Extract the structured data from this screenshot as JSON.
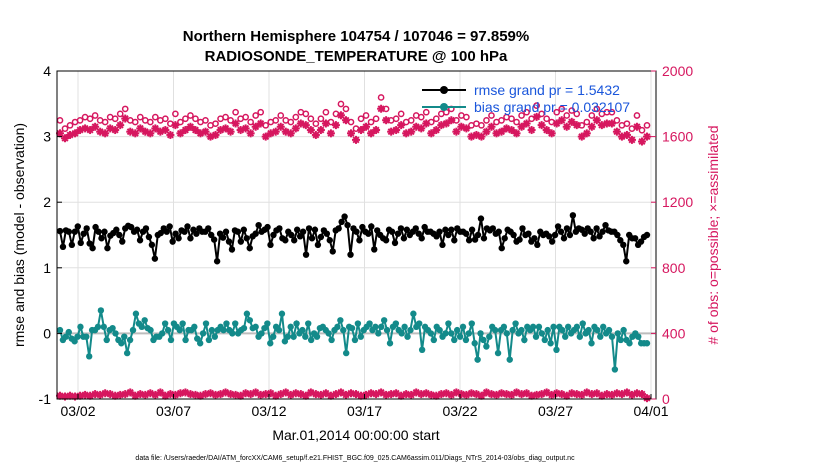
{
  "colors": {
    "rmse": "#000000",
    "bias": "#138a8a",
    "obs": "#d6175f",
    "axis_right": "#d6175f",
    "legend_text": "#1a56db",
    "zero_line": "#bdbdbd",
    "grid": "#e0e0e0"
  },
  "footer_text": "data file: /Users/raeder/DAI/ATM_forcXX/CAM6_setup/f.e21.FHIST_BGC.f09_025.CAM6assim.011/Diags_NTrS_2014-03/obs_diag_output.nc",
  "chart_data": {
    "type": "line",
    "title": [
      "Northern Hemisphere 104754 / 107046 = 97.859%",
      "RADIOSONDE_TEMPERATURE @ 100 hPa"
    ],
    "xlabel": "Mar.01,2014 00:00:00 start",
    "ylabel": "rmse and bias (model - observation)",
    "ylabel_right": "# of obs: o=possible; ×=assimilated",
    "x_ticks": [
      "03/02",
      "03/07",
      "03/12",
      "03/17",
      "03/22",
      "03/27",
      "04/01"
    ],
    "y_ticks": [
      "-1",
      "0",
      "1",
      "2",
      "3",
      "4"
    ],
    "y_ticks_right": [
      "0",
      "400",
      "800",
      "1200",
      "1600",
      "2000"
    ],
    "xlim": [
      0.5,
      31
    ],
    "ylim": [
      -1,
      4
    ],
    "ylim_right": [
      0,
      2000
    ],
    "legend": [
      "rmse grand pr = 1.5432",
      "bias grand pr = 0.032107"
    ],
    "series": [
      {
        "name": "rmse",
        "values": [
          1.56,
          1.32,
          1.57,
          1.55,
          1.35,
          1.55,
          1.63,
          1.38,
          1.52,
          1.6,
          1.37,
          1.3,
          1.62,
          1.55,
          1.45,
          1.55,
          1.3,
          1.49,
          1.53,
          1.58,
          1.5,
          1.4,
          1.6,
          1.64,
          1.62,
          1.55,
          1.58,
          1.42,
          1.55,
          1.6,
          1.47,
          1.35,
          1.14,
          1.5,
          1.53,
          1.6,
          1.55,
          1.63,
          1.4,
          1.52,
          1.45,
          1.57,
          1.55,
          1.63,
          1.45,
          1.58,
          1.52,
          1.6,
          1.55,
          1.55,
          1.6,
          1.5,
          1.43,
          1.1,
          1.52,
          1.46,
          1.55,
          1.4,
          1.28,
          1.57,
          1.55,
          1.4,
          1.58,
          1.45,
          1.3,
          1.48,
          1.52,
          1.65,
          1.55,
          1.58,
          1.62,
          1.35,
          1.5,
          1.57,
          1.6,
          1.45,
          1.42,
          1.55,
          1.5,
          1.42,
          1.58,
          1.48,
          1.55,
          1.2,
          1.6,
          1.45,
          1.58,
          1.35,
          1.47,
          1.57,
          1.52,
          1.42,
          1.25,
          1.57,
          1.6,
          1.7,
          1.78,
          1.65,
          1.2,
          1.6,
          1.55,
          1.42,
          1.62,
          1.55,
          1.52,
          1.63,
          1.28,
          1.57,
          1.5,
          1.45,
          1.42,
          1.58,
          1.55,
          1.38,
          1.52,
          1.6,
          1.45,
          1.58,
          1.5,
          1.55,
          1.6,
          1.52,
          1.45,
          1.62,
          1.55,
          1.55,
          1.52,
          1.48,
          1.55,
          1.35,
          1.58,
          1.5,
          1.58,
          1.42,
          1.6,
          1.55,
          1.55,
          1.52,
          1.42,
          1.58,
          1.43,
          1.5,
          1.75,
          1.45,
          1.6,
          1.57,
          1.6,
          1.52,
          1.55,
          1.3,
          1.45,
          1.58,
          1.55,
          1.5,
          1.4,
          1.43,
          1.6,
          1.5,
          1.52,
          1.4,
          1.45,
          1.35,
          1.55,
          1.5,
          1.52,
          1.48,
          1.4,
          1.5,
          1.63,
          1.55,
          1.45,
          1.6,
          1.5,
          1.8,
          1.55,
          1.6,
          1.58,
          1.52,
          1.6,
          1.55,
          1.45,
          1.6,
          1.48,
          1.55,
          1.65,
          1.57,
          1.55,
          1.55,
          1.5,
          1.42,
          1.35,
          1.1,
          1.5,
          1.45,
          1.45,
          1.35,
          1.4,
          1.47,
          1.5
        ]
      },
      {
        "name": "bias",
        "values": [
          0.05,
          -0.1,
          -0.05,
          0.02,
          -0.08,
          -0.12,
          -0.05,
          0.1,
          -0.05,
          -0.05,
          -0.35,
          0.05,
          0.05,
          0.1,
          0.35,
          0.1,
          -0.1,
          0.05,
          0.08,
          0.0,
          -0.1,
          -0.15,
          -0.05,
          -0.3,
          -0.1,
          0.05,
          0.3,
          0.15,
          0.1,
          0.2,
          0.08,
          0.05,
          -0.1,
          -0.05,
          -0.05,
          0.0,
          0.15,
          0.05,
          -0.1,
          0.15,
          0.1,
          0.05,
          0.15,
          -0.1,
          0.05,
          0.05,
          0.1,
          -0.08,
          -0.15,
          0.0,
          0.15,
          -0.1,
          0.05,
          -0.05,
          0.05,
          0.1,
          0.05,
          0.15,
          0.05,
          0.0,
          0.15,
          0.0,
          0.05,
          0.08,
          0.3,
          0.2,
          0.08,
          0.1,
          -0.05,
          0.0,
          0.08,
          0.15,
          -0.15,
          -0.05,
          0.1,
          0.05,
          0.3,
          -0.12,
          -0.05,
          0.1,
          -0.05,
          0.15,
          0.0,
          0.05,
          -0.05,
          0.15,
          -0.1,
          0.0,
          -0.05,
          0.08,
          0.1,
          0.05,
          0.0,
          -0.1,
          0.05,
          0.1,
          0.2,
          0.05,
          -0.3,
          0.1,
          0.08,
          -0.1,
          0.15,
          -0.05,
          0.05,
          0.1,
          0.15,
          0.05,
          0.1,
          0.0,
          0.1,
          0.2,
          0.05,
          -0.15,
          0.1,
          0.15,
          0.05,
          0.0,
          0.1,
          -0.05,
          0.05,
          0.3,
          0.1,
          0.15,
          -0.25,
          0.1,
          0.05,
          0.0,
          -0.1,
          0.1,
          0.05,
          -0.05,
          0.0,
          0.15,
          0.0,
          -0.1,
          0.05,
          -0.05,
          0.1,
          -0.1,
          0.0,
          0.15,
          -0.15,
          -0.4,
          0.0,
          -0.1,
          -0.2,
          -0.05,
          0.1,
          0.05,
          -0.3,
          0.05,
          0.1,
          0.0,
          -0.4,
          0.05,
          0.15,
          0.0,
          0.05,
          -0.1,
          0.1,
          0.05,
          0.1,
          -0.05,
          0.1,
          0.0,
          -0.1,
          0.05,
          -0.15,
          0.1,
          -0.25,
          0.1,
          0.05,
          -0.05,
          0.1,
          0.0,
          0.05,
          0.1,
          -0.05,
          0.15,
          0.0,
          0.05,
          -0.15,
          0.1,
          0.05,
          -0.05,
          0.1,
          0.0,
          0.05,
          -0.05,
          -0.55,
          0.0,
          -0.1,
          0.05,
          -0.1,
          -0.15,
          -0.05,
          0.0,
          -0.05,
          -0.15,
          -0.15,
          -0.15
        ]
      },
      {
        "name": "obs_possible",
        "axis": "right",
        "values": [
          1650,
          1600,
          1620,
          1640,
          1650,
          1670,
          1660,
          1680,
          1650,
          1640,
          1670,
          1660,
          1690,
          1720,
          1650,
          1640,
          1670,
          1650,
          1640,
          1670,
          1650,
          1660,
          1630,
          1690,
          1640,
          1660,
          1680,
          1660,
          1640,
          1650,
          1620,
          1630,
          1660,
          1670,
          1650,
          1700,
          1660,
          1670,
          1640,
          1680,
          1700,
          1620,
          1640,
          1650,
          1680,
          1650,
          1640,
          1670,
          1700,
          1690,
          1660,
          1630,
          1660,
          1700,
          1640,
          1690,
          1750,
          1720,
          1640,
          1600,
          1660,
          1680,
          1640,
          1660,
          1790,
          1720,
          1650,
          1660,
          1690,
          1640,
          1650,
          1680,
          1670,
          1700,
          1640,
          1660,
          1690,
          1700,
          1720,
          1650,
          1680,
          1670,
          1620,
          1630,
          1620,
          1650,
          1680,
          1640,
          1650,
          1670,
          1660,
          1640,
          1680,
          1700,
          1660,
          1740,
          1690,
          1660,
          1640,
          1700,
          1720,
          1680,
          1710,
          1690,
          1620,
          1640,
          1680,
          1720,
          1690,
          1700,
          1700,
          1650,
          1620,
          1630,
          1600,
          1680,
          1590,
          1620
        ]
      },
      {
        "name": "obs_assimilated",
        "axis": "right",
        "values": [
          1620,
          1590,
          1610,
          1620,
          1640,
          1650,
          1640,
          1660,
          1630,
          1620,
          1650,
          1640,
          1670,
          1710,
          1630,
          1620,
          1650,
          1630,
          1620,
          1650,
          1630,
          1640,
          1610,
          1670,
          1620,
          1640,
          1660,
          1640,
          1620,
          1630,
          1600,
          1610,
          1640,
          1650,
          1630,
          1680,
          1640,
          1650,
          1620,
          1660,
          1680,
          1600,
          1620,
          1630,
          1660,
          1630,
          1620,
          1650,
          1680,
          1670,
          1640,
          1610,
          1640,
          1680,
          1620,
          1670,
          1730,
          1700,
          1620,
          1580,
          1640,
          1660,
          1620,
          1640,
          1770,
          1700,
          1630,
          1640,
          1670,
          1620,
          1630,
          1660,
          1650,
          1680,
          1620,
          1640,
          1670,
          1680,
          1700,
          1630,
          1660,
          1650,
          1600,
          1610,
          1600,
          1630,
          1660,
          1620,
          1630,
          1650,
          1640,
          1620,
          1660,
          1680,
          1640,
          1720,
          1670,
          1640,
          1620,
          1680,
          1700,
          1660,
          1690,
          1670,
          1600,
          1620,
          1660,
          1700,
          1670,
          1680,
          1680,
          1630,
          1600,
          1610,
          1580,
          1660,
          1570,
          1600
        ]
      },
      {
        "name": "obs_count_low",
        "axis": "right",
        "values": [
          20,
          15,
          20,
          15,
          20,
          25,
          20,
          30,
          25,
          35,
          30,
          20,
          25,
          30,
          40,
          20,
          30,
          25,
          35,
          25,
          40,
          20,
          30,
          25,
          35,
          40,
          30,
          25,
          20,
          30,
          35,
          25,
          30,
          40,
          30,
          25,
          20,
          35,
          30,
          40,
          25,
          30,
          35,
          20,
          30,
          40,
          25,
          35,
          30,
          20,
          40,
          30,
          25,
          35,
          20,
          30,
          40,
          25,
          35,
          30,
          20,
          25,
          35,
          30,
          40,
          25,
          30,
          35,
          20,
          30,
          25,
          40,
          30,
          35,
          25,
          20,
          30,
          35,
          25,
          40,
          30,
          25,
          35,
          30,
          20,
          40,
          30,
          25,
          35,
          30,
          25,
          40,
          30,
          35,
          20,
          25,
          30,
          40,
          25,
          35,
          30,
          20,
          35,
          30,
          25,
          40,
          30,
          35,
          20,
          30,
          25,
          35,
          30,
          40,
          25,
          35,
          30,
          5
        ]
      }
    ]
  }
}
